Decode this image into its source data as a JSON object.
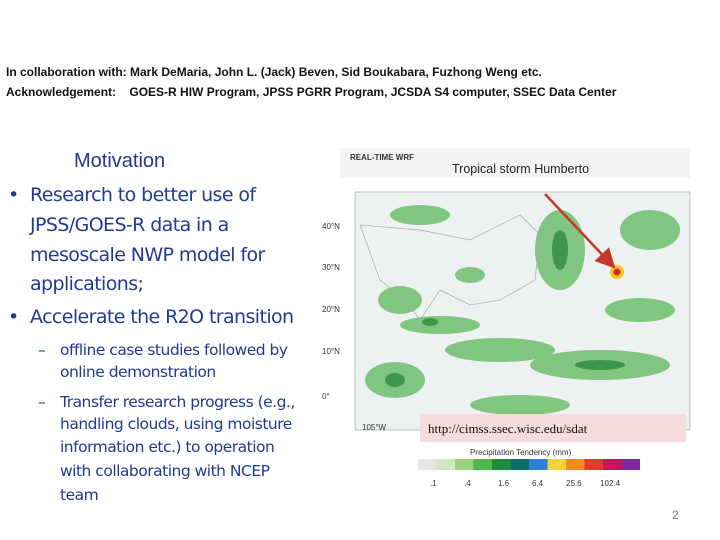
{
  "header": {
    "collaboration_label": "In collaboration with:",
    "collaboration": "Mark DeMaria, John L. (Jack) Beven, Sid Boukabara, Fuzhong Weng etc.",
    "acknowledgement_label": "Acknowledgement:",
    "acknowledgement": "GOES-R HIW Program, JPSS PGRR Program, JCSDA S4 computer, SSEC Data Center"
  },
  "body": {
    "title": "Motivation",
    "bullets": [
      [
        "Research to better use of",
        "JPSS/GOES-R data in a",
        "mesoscale NWP model for",
        "applications;"
      ],
      [
        "Accelerate the R2O transition"
      ]
    ],
    "sub_bullets": [
      [
        "offline case studies followed by",
        "online demonstration"
      ],
      [
        "Transfer research progress (e.g.,",
        "handling clouds, using moisture",
        "information etc.) to operation",
        "with collaborating with NCEP",
        "team"
      ]
    ]
  },
  "figure": {
    "banner": "REAL-TIME WRF",
    "caption": "Tropical storm Humberto",
    "latitudes": [
      "40°N",
      "30°N",
      "20°N",
      "10°N",
      "0°"
    ],
    "longitude": "105°W",
    "url": "http://cimss.ssec.wisc.edu/sdat",
    "legend_title": "Precipitation Tendency (mm)",
    "legend_labels": [
      ".1",
      ".4",
      "1.6",
      "6.4",
      "25.6",
      "102.4"
    ]
  },
  "page_number": "2"
}
